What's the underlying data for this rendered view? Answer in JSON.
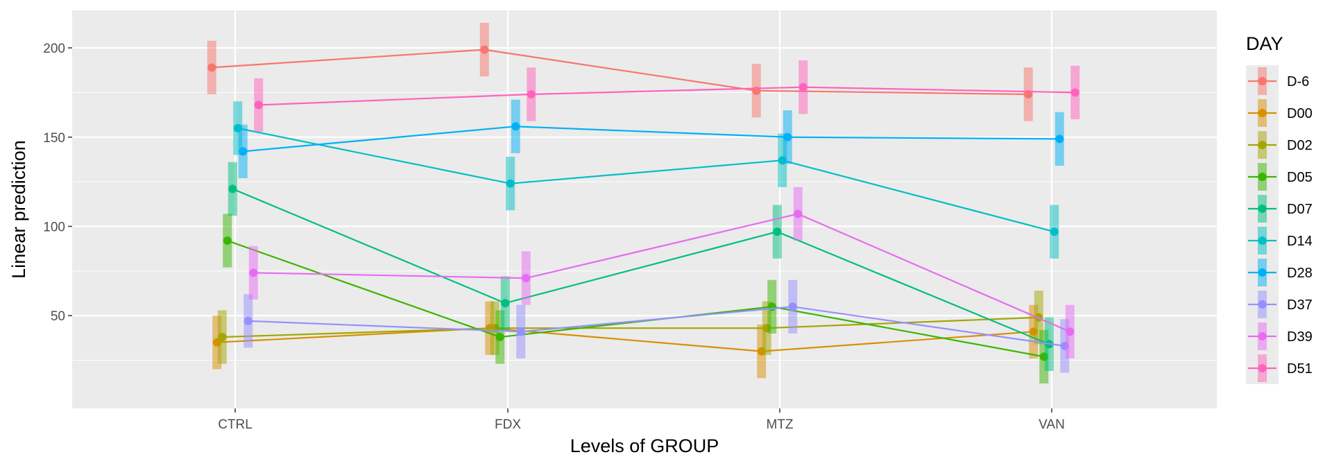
{
  "chart_data": {
    "type": "line",
    "xlabel": "Levels of GROUP",
    "ylabel": "Linear prediction",
    "categories": [
      "CTRL",
      "FDX",
      "MTZ",
      "VAN"
    ],
    "ylim": [
      -2,
      221
    ],
    "yticks": [
      50,
      100,
      150,
      200
    ],
    "grid": true,
    "legend_title": "DAY",
    "legend_position": "right",
    "ci_halfwidth": 15,
    "series": [
      {
        "name": "D-6",
        "color": "#F8766D",
        "values": [
          189,
          199,
          176,
          174
        ]
      },
      {
        "name": "D00",
        "color": "#D89000",
        "values": [
          35,
          43,
          30,
          41
        ]
      },
      {
        "name": "D02",
        "color": "#A3A500",
        "values": [
          38,
          43,
          43,
          49
        ]
      },
      {
        "name": "D05",
        "color": "#39B600",
        "values": [
          92,
          38,
          55,
          27
        ]
      },
      {
        "name": "D07",
        "color": "#00BF7D",
        "values": [
          121,
          57,
          97,
          34
        ]
      },
      {
        "name": "D14",
        "color": "#00BFC4",
        "values": [
          155,
          124,
          137,
          97
        ]
      },
      {
        "name": "D28",
        "color": "#00B0F6",
        "values": [
          142,
          156,
          150,
          149
        ]
      },
      {
        "name": "D37",
        "color": "#9590FF",
        "values": [
          47,
          41,
          55,
          33
        ]
      },
      {
        "name": "D39",
        "color": "#E76BF3",
        "values": [
          74,
          71,
          107,
          41
        ]
      },
      {
        "name": "D51",
        "color": "#FF62BC",
        "values": [
          168,
          174,
          178,
          175
        ]
      }
    ]
  }
}
